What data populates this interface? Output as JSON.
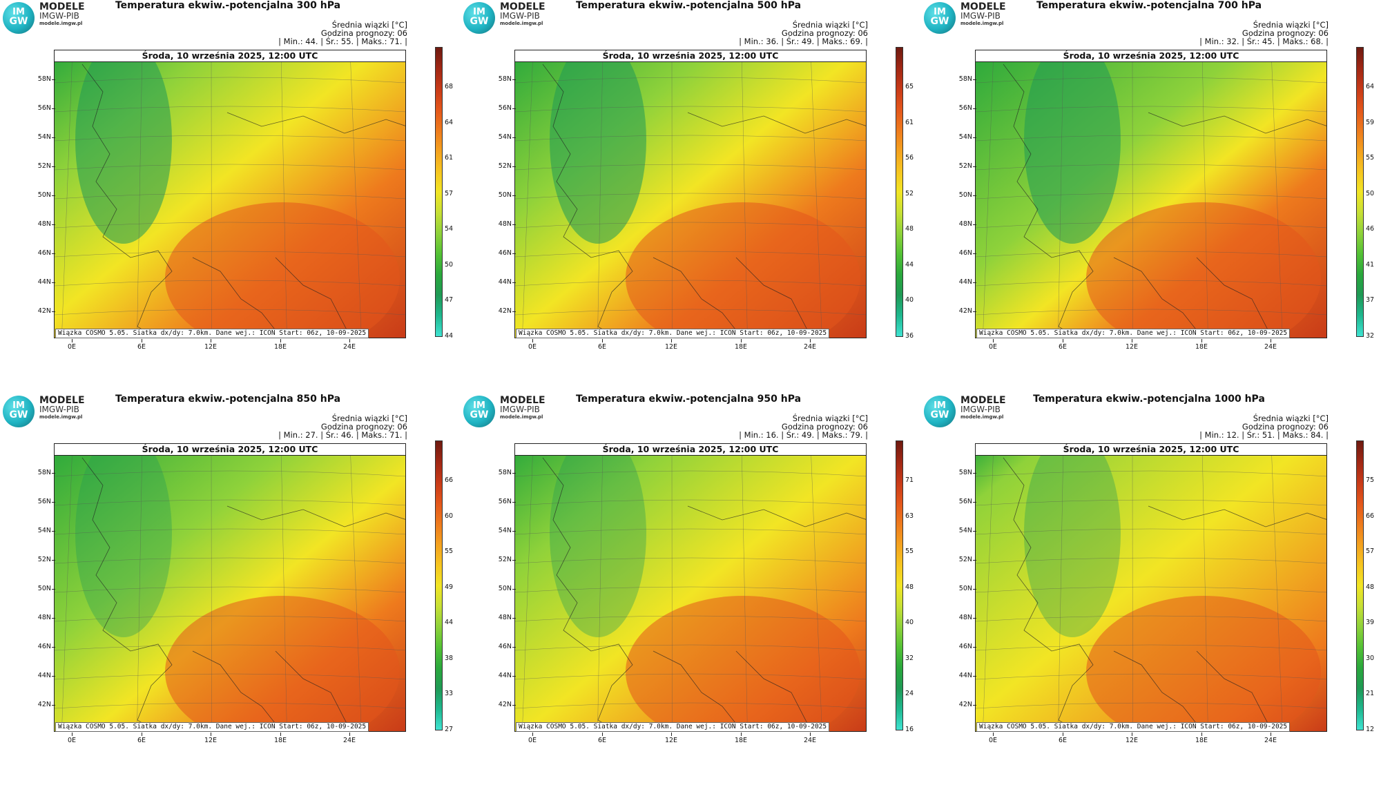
{
  "logo": {
    "badge_top": "IM",
    "badge_bottom": "GW",
    "line1": "MODELE",
    "line2": "IMGW-PIB",
    "line3": "modele.imgw.pl"
  },
  "labels": {
    "avg_unit": "Średnia wiązki [°C]",
    "forecast_hour": "Godzina prognozy: 06",
    "datetime": "Środa, 10 września 2025, 12:00 UTC",
    "footer": "Wiązka COSMO 5.05. Siatka dx/dy: 7.0km. Dane wej.: ICON Start: 06z, 10-09-2025"
  },
  "axes": {
    "lat_labels": [
      "58N",
      "56N",
      "54N",
      "52N",
      "50N",
      "48N",
      "46N",
      "44N",
      "42N"
    ],
    "lon_labels": [
      "0E",
      "6E",
      "12E",
      "18E",
      "24E"
    ]
  },
  "colorscale": [
    "#3fe3d2",
    "#1fb88f",
    "#1f9a55",
    "#2aa83c",
    "#54c235",
    "#8fd23a",
    "#c8e035",
    "#f2e524",
    "#f6c520",
    "#f4a11f",
    "#ee7a1d",
    "#e3561b",
    "#c83a18",
    "#a02714",
    "#6e1a10"
  ],
  "panels": [
    {
      "title": "Temperatura ekwiw.-potencjalna 300 hPa",
      "stats": "| Min.:    44. | Śr.:    55. | Maks.:    71. |",
      "ticks": [
        "68",
        "64",
        "61",
        "57",
        "54",
        "50",
        "47",
        "44"
      ],
      "cold": 0.22,
      "warm": 0.7
    },
    {
      "title": "Temperatura ekwiw.-potencjalna 500 hPa",
      "stats": "| Min.:    36. | Śr.:    49. | Maks.:    69. |",
      "ticks": [
        "65",
        "61",
        "56",
        "52",
        "48",
        "44",
        "40",
        "36"
      ],
      "cold": 0.28,
      "warm": 0.7
    },
    {
      "title": "Temperatura ekwiw.-potencjalna 700 hPa",
      "stats": "| Min.:    32. | Śr.:    45. | Maks.:    68. |",
      "ticks": [
        "64",
        "59",
        "55",
        "50",
        "46",
        "41",
        "37",
        "32"
      ],
      "cold": 0.38,
      "warm": 0.7
    },
    {
      "title": "Temperatura ekwiw.-potencjalna 850 hPa",
      "stats": "| Min.:    27. | Śr.:    46. | Maks.:    71. |",
      "ticks": [
        "66",
        "60",
        "55",
        "49",
        "44",
        "38",
        "33",
        "27"
      ],
      "cold": 0.34,
      "warm": 0.76
    },
    {
      "title": "Temperatura ekwiw.-potencjalna 950 hPa",
      "stats": "| Min.:    16. | Śr.:    49. | Maks.:    79. |",
      "ticks": [
        "71",
        "63",
        "55",
        "48",
        "40",
        "32",
        "24",
        "16"
      ],
      "cold": 0.22,
      "warm": 0.8
    },
    {
      "title": "Temperatura ekwiw.-potencjalna 1000 hPa",
      "stats": "| Min.:    12. | Śr.:    51. | Maks.:    84. |",
      "ticks": [
        "75",
        "66",
        "57",
        "48",
        "39",
        "30",
        "21",
        "12"
      ],
      "cold": 0.1,
      "warm": 0.84
    }
  ]
}
